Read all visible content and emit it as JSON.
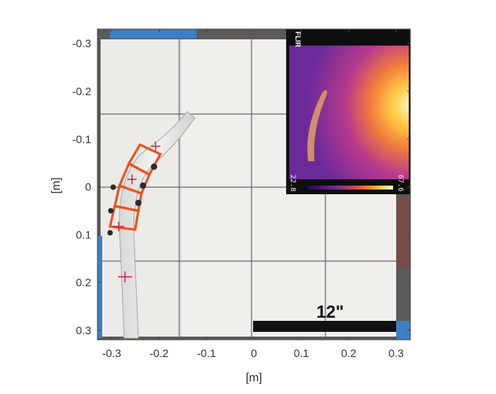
{
  "axes": {
    "xlabel": "[m]",
    "ylabel": "[m]",
    "xticks": [
      "-0.3",
      "-0.2",
      "-0.1",
      "0",
      "0.1",
      "0.2",
      "0.3"
    ],
    "yticks": [
      "-0.3",
      "-0.2",
      "-0.1",
      "0",
      "0.1",
      "0.2",
      "0.3"
    ],
    "xlim": [
      -0.33,
      0.33
    ],
    "ylim": [
      -0.33,
      0.32
    ],
    "y_reversed": true
  },
  "scale_bar": {
    "label": "12\""
  },
  "thermal_inset": {
    "brand": "FLIR",
    "min_temp": "22.8",
    "max_temp": "67.6"
  },
  "colors": {
    "board": "#ecebe8",
    "grid_lines": "#6c6c6c",
    "tape_blue": "#3c7fc4",
    "robot_orange": "#e8531f",
    "scale_bar": "#111111"
  }
}
